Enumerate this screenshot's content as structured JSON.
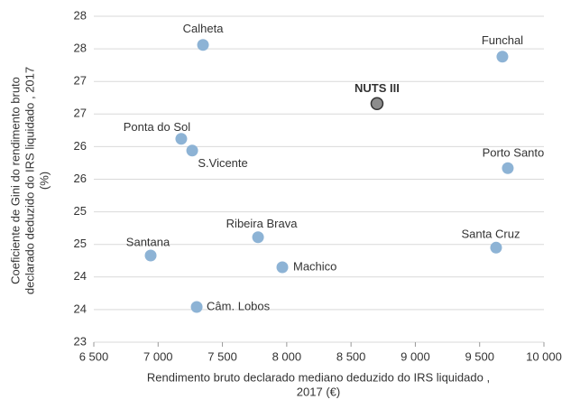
{
  "chart_data": {
    "type": "scatter",
    "xlabel": [
      "Rendimento bruto declarado mediano deduzido do IRS liquidado ,",
      "2017 (€)"
    ],
    "ylabel": [
      "Coeficiente de Gini do rendimento bruto",
      "declarado deduzido do IRS liquidado , 2017",
      "(%)"
    ],
    "series": [
      {
        "color": "#8db3d5",
        "labels": [
          "Calheta",
          "Funchal",
          "Ponta do Sol",
          "S.Vicente",
          "Porto Santo",
          "Ribeira Brava",
          "Santa Cruz",
          "Santana",
          "Machico",
          "Câm. Lobos"
        ],
        "x": [
          7349,
          9677,
          7180,
          7265,
          9719,
          7777,
          9628,
          6942,
          7966,
          7300
        ],
        "values": [
          27.56,
          27.38,
          26.12,
          25.94,
          25.67,
          24.61,
          24.45,
          24.33,
          24.15,
          23.54
        ]
      },
      {
        "color": "#8c8c8c",
        "stroke": "#333333",
        "bold": true,
        "labels": [
          "NUTS III"
        ],
        "x": [
          8702
        ],
        "values": [
          26.66
        ]
      }
    ],
    "xlim": [
      6500,
      10000
    ],
    "xticks": [
      {
        "value": 6500,
        "label": "6 500"
      },
      {
        "value": 7000,
        "label": "7 000"
      },
      {
        "value": 7500,
        "label": "7 500"
      },
      {
        "value": 8000,
        "label": "8 000"
      },
      {
        "value": 8500,
        "label": "8 500"
      },
      {
        "value": 9000,
        "label": "9 000"
      },
      {
        "value": 9500,
        "label": "9 500"
      },
      {
        "value": 10000,
        "label": "10 000"
      }
    ],
    "ylim": [
      23,
      28
    ],
    "yticks": [
      23,
      {
        "value": 23.5,
        "label": "24"
      },
      24,
      {
        "value": 24.5,
        "label": "25"
      },
      25,
      {
        "value": 25.5,
        "label": "26"
      },
      26,
      {
        "value": 26.5,
        "label": "27"
      },
      27,
      {
        "value": 27.5,
        "label": "28"
      },
      28
    ],
    "grid": true
  }
}
